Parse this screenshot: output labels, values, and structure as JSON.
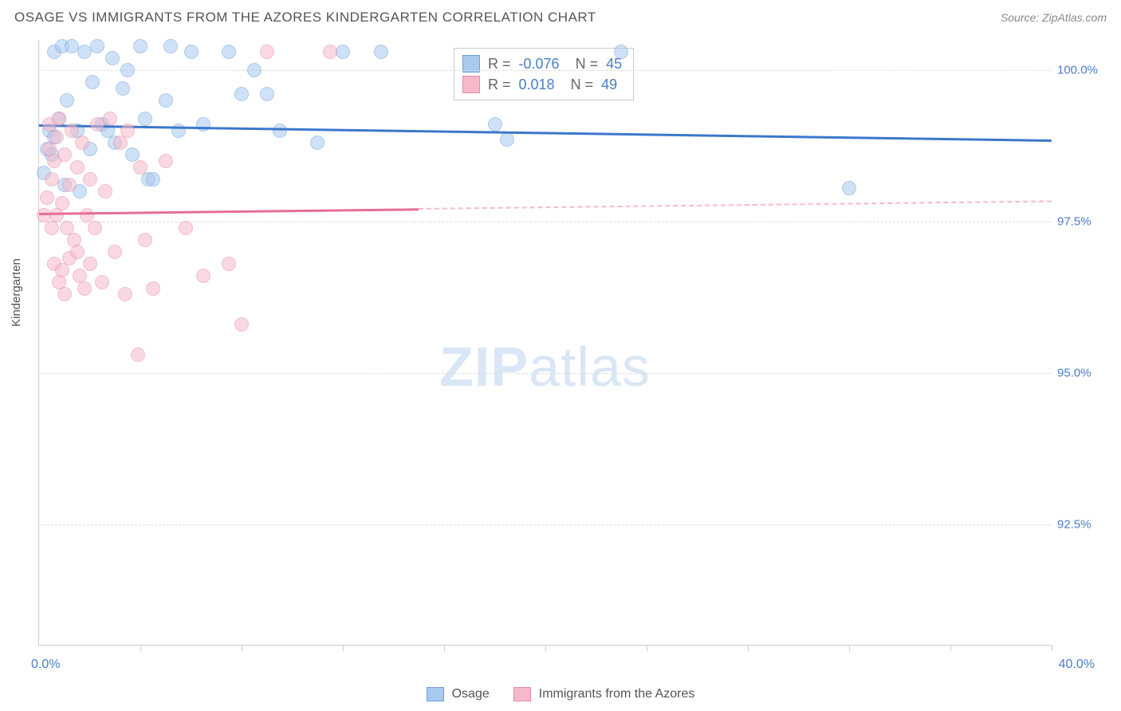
{
  "title": "OSAGE VS IMMIGRANTS FROM THE AZORES KINDERGARTEN CORRELATION CHART",
  "source_label": "Source: ZipAtlas.com",
  "watermark": {
    "bold": "ZIP",
    "light": "atlas"
  },
  "chart": {
    "type": "scatter",
    "ylabel": "Kindergarten",
    "xlim": [
      0.0,
      40.0
    ],
    "ylim": [
      90.5,
      100.5
    ],
    "xlabel_min": "0.0%",
    "xlabel_max": "40.0%",
    "xtick_positions": [
      4,
      8,
      12,
      16,
      20,
      24,
      28,
      32,
      36,
      40
    ],
    "yticks": [
      {
        "value": 100.0,
        "label": "100.0%"
      },
      {
        "value": 97.5,
        "label": "97.5%"
      },
      {
        "value": 95.0,
        "label": "95.0%"
      },
      {
        "value": 92.5,
        "label": "92.5%"
      }
    ],
    "grid_color": "#dddddd",
    "background_color": "#ffffff",
    "axis_color": "#cccccc",
    "series": [
      {
        "name": "Osage",
        "fill_color": "#a9c9ef",
        "stroke_color": "#6b9fdd",
        "trend_color": "#3b78cc",
        "R": "-0.076",
        "N": "45",
        "trend": {
          "x0": 0,
          "y0": 99.1,
          "x1": 40,
          "y1": 98.85,
          "solid_until_x": 40
        },
        "points": [
          [
            0.2,
            98.3
          ],
          [
            0.3,
            98.7
          ],
          [
            0.4,
            99.0
          ],
          [
            0.5,
            98.6
          ],
          [
            0.6,
            98.9
          ],
          [
            0.6,
            100.3
          ],
          [
            0.8,
            99.2
          ],
          [
            0.9,
            100.4
          ],
          [
            1.0,
            98.1
          ],
          [
            1.1,
            99.5
          ],
          [
            1.3,
            100.4
          ],
          [
            1.5,
            99.0
          ],
          [
            1.6,
            98.0
          ],
          [
            1.8,
            100.3
          ],
          [
            2.0,
            98.7
          ],
          [
            2.1,
            99.8
          ],
          [
            2.3,
            100.4
          ],
          [
            2.5,
            99.1
          ],
          [
            2.7,
            99.0
          ],
          [
            2.9,
            100.2
          ],
          [
            3.0,
            98.8
          ],
          [
            3.3,
            99.7
          ],
          [
            3.5,
            100.0
          ],
          [
            3.7,
            98.6
          ],
          [
            4.0,
            100.4
          ],
          [
            4.2,
            99.2
          ],
          [
            4.3,
            98.2
          ],
          [
            4.5,
            98.2
          ],
          [
            5.0,
            99.5
          ],
          [
            5.2,
            100.4
          ],
          [
            5.5,
            99.0
          ],
          [
            6.0,
            100.3
          ],
          [
            6.5,
            99.1
          ],
          [
            7.5,
            100.3
          ],
          [
            8.0,
            99.6
          ],
          [
            8.5,
            100.0
          ],
          [
            9.0,
            99.6
          ],
          [
            9.5,
            99.0
          ],
          [
            11.0,
            98.8
          ],
          [
            12.0,
            100.3
          ],
          [
            13.5,
            100.3
          ],
          [
            18.0,
            99.1
          ],
          [
            18.5,
            98.85
          ],
          [
            23.0,
            100.3
          ],
          [
            32.0,
            98.05
          ]
        ]
      },
      {
        "name": "Immigrants from the Azores",
        "fill_color": "#f6b9ca",
        "stroke_color": "#e78ba6",
        "trend_color": "#e56f93",
        "R": "0.018",
        "N": "49",
        "trend": {
          "x0": 0,
          "y0": 97.65,
          "x1": 40,
          "y1": 97.85,
          "solid_until_x": 15
        },
        "points": [
          [
            0.2,
            97.6
          ],
          [
            0.3,
            97.9
          ],
          [
            0.4,
            98.7
          ],
          [
            0.4,
            99.1
          ],
          [
            0.5,
            98.2
          ],
          [
            0.5,
            97.4
          ],
          [
            0.6,
            96.8
          ],
          [
            0.6,
            98.5
          ],
          [
            0.7,
            97.6
          ],
          [
            0.7,
            98.9
          ],
          [
            0.8,
            96.5
          ],
          [
            0.8,
            99.2
          ],
          [
            0.9,
            97.8
          ],
          [
            0.9,
            96.7
          ],
          [
            1.0,
            98.6
          ],
          [
            1.0,
            96.3
          ],
          [
            1.1,
            97.4
          ],
          [
            1.2,
            98.1
          ],
          [
            1.2,
            96.9
          ],
          [
            1.3,
            99.0
          ],
          [
            1.4,
            97.2
          ],
          [
            1.5,
            98.4
          ],
          [
            1.5,
            97.0
          ],
          [
            1.6,
            96.6
          ],
          [
            1.7,
            98.8
          ],
          [
            1.8,
            96.4
          ],
          [
            1.9,
            97.6
          ],
          [
            2.0,
            98.2
          ],
          [
            2.0,
            96.8
          ],
          [
            2.2,
            97.4
          ],
          [
            2.3,
            99.1
          ],
          [
            2.5,
            96.5
          ],
          [
            2.6,
            98.0
          ],
          [
            2.8,
            99.2
          ],
          [
            3.0,
            97.0
          ],
          [
            3.2,
            98.8
          ],
          [
            3.4,
            96.3
          ],
          [
            3.5,
            99.0
          ],
          [
            3.9,
            95.3
          ],
          [
            4.0,
            98.4
          ],
          [
            4.2,
            97.2
          ],
          [
            4.5,
            96.4
          ],
          [
            5.0,
            98.5
          ],
          [
            5.8,
            97.4
          ],
          [
            6.5,
            96.6
          ],
          [
            7.5,
            96.8
          ],
          [
            8.0,
            95.8
          ],
          [
            9.0,
            100.3
          ],
          [
            11.5,
            100.3
          ]
        ]
      }
    ],
    "legend_bottom": [
      {
        "label": "Osage",
        "fill": "#a9c9ef",
        "stroke": "#6b9fdd"
      },
      {
        "label": "Immigrants from the Azores",
        "fill": "#f6b9ca",
        "stroke": "#e78ba6"
      }
    ]
  }
}
